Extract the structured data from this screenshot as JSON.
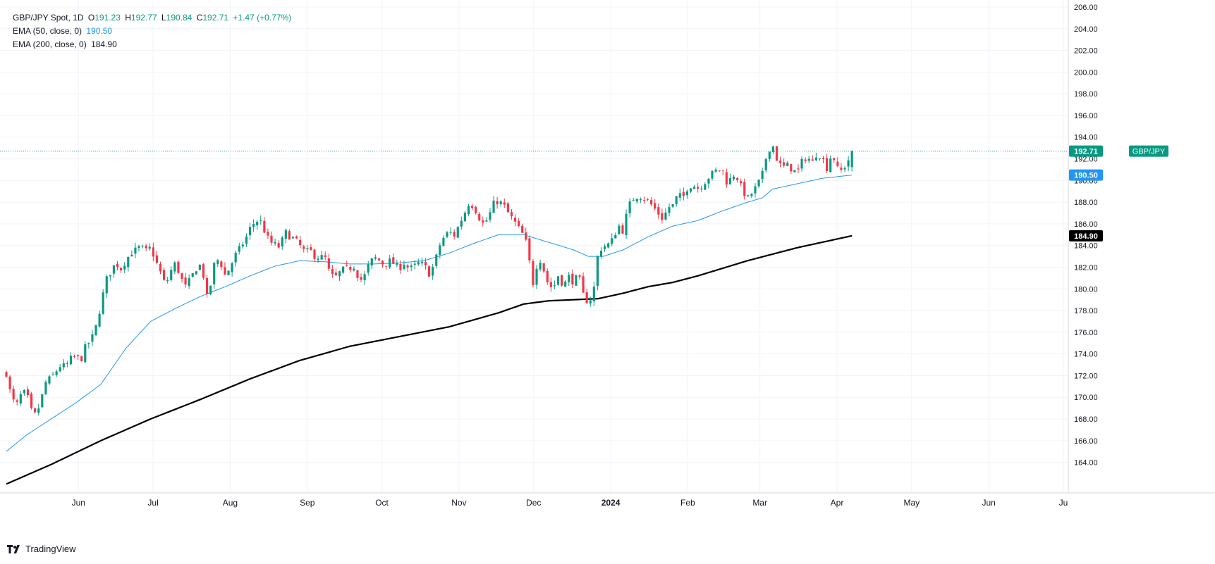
{
  "legend": {
    "symbol": "GBP/JPY Spot, 1D",
    "open_label": "O",
    "open": "191.23",
    "high_label": "H",
    "high": "192.77",
    "low_label": "L",
    "low": "190.84",
    "close_label": "C",
    "close": "192.71",
    "change": "+1.47 (+0.77%)",
    "ema50_label": "EMA (50, close, 0)",
    "ema50_value": "190.50",
    "ema200_label": "EMA (200, close, 0)",
    "ema200_value": "184.90"
  },
  "brand": {
    "name": "TradingView",
    "icon": "tradingview-logo-icon"
  },
  "colors": {
    "up": "#089981",
    "down": "#f23645",
    "ema50": "#2196f3",
    "ema200": "#000000",
    "grid": "#f0f3fa",
    "axis_text": "#131722"
  },
  "chart_data": {
    "type": "candlestick",
    "title": "GBP/JPY Spot, 1D",
    "xlabel": "",
    "ylabel": "",
    "ylim": [
      163.0,
      206.0
    ],
    "grid": true,
    "price_tag": {
      "label": "GBP/JPY",
      "value": "192.71",
      "price": 192.71
    },
    "ema50_tag": {
      "value": "190.50",
      "price": 190.5
    },
    "ema200_tag": {
      "value": "184.90",
      "price": 184.9
    },
    "y_ticks": [
      "164.00",
      "166.00",
      "168.00",
      "170.00",
      "172.00",
      "174.00",
      "176.00",
      "178.00",
      "180.00",
      "182.00",
      "184.00",
      "186.00",
      "188.00",
      "190.00",
      "192.00",
      "194.00",
      "196.00",
      "198.00",
      "200.00",
      "202.00",
      "204.00",
      "206.00"
    ],
    "x_ticks": [
      {
        "label": "Jun",
        "day": 21
      },
      {
        "label": "Jul",
        "day": 51
      },
      {
        "label": "Aug",
        "day": 82
      },
      {
        "label": "Sep",
        "day": 113
      },
      {
        "label": "Oct",
        "day": 143
      },
      {
        "label": "Nov",
        "day": 174
      },
      {
        "label": "Dec",
        "day": 204
      },
      {
        "label": "2024",
        "day": 235,
        "bold": true
      },
      {
        "label": "Feb",
        "day": 266
      },
      {
        "label": "Mar",
        "day": 295
      },
      {
        "label": "Apr",
        "day": 326
      },
      {
        "label": "May",
        "day": 356
      },
      {
        "label": "Jun",
        "day": 387
      },
      {
        "label": "Ju",
        "day": 417
      }
    ],
    "x_range_days": [
      -8,
      419
    ],
    "last_day": 356,
    "close_anchors": [
      [
        -8,
        172.2
      ],
      [
        -6,
        170.0
      ],
      [
        -4,
        169.2
      ],
      [
        -2,
        170.3
      ],
      [
        0,
        170.5
      ],
      [
        2,
        168.8
      ],
      [
        4,
        168.3
      ],
      [
        6,
        169.8
      ],
      [
        8,
        171.5
      ],
      [
        10,
        171.8
      ],
      [
        12,
        172.4
      ],
      [
        14,
        173.0
      ],
      [
        16,
        172.8
      ],
      [
        18,
        173.6
      ],
      [
        20,
        173.8
      ],
      [
        22,
        173.4
      ],
      [
        24,
        174.8
      ],
      [
        26,
        175.2
      ],
      [
        28,
        176.5
      ],
      [
        30,
        178.5
      ],
      [
        32,
        180.8
      ],
      [
        34,
        181.6
      ],
      [
        36,
        182.4
      ],
      [
        38,
        181.8
      ],
      [
        40,
        182.6
      ],
      [
        42,
        183.3
      ],
      [
        44,
        183.6
      ],
      [
        46,
        183.9
      ],
      [
        48,
        183.5
      ],
      [
        50,
        183.8
      ],
      [
        52,
        182.6
      ],
      [
        54,
        181.5
      ],
      [
        56,
        180.3
      ],
      [
        58,
        181.6
      ],
      [
        60,
        182.4
      ],
      [
        62,
        181.1
      ],
      [
        64,
        180.2
      ],
      [
        66,
        180.9
      ],
      [
        68,
        181.8
      ],
      [
        70,
        182.2
      ],
      [
        72,
        180.6
      ],
      [
        73,
        178.6
      ],
      [
        74,
        180.2
      ],
      [
        76,
        182.8
      ],
      [
        78,
        182.5
      ],
      [
        80,
        181.2
      ],
      [
        82,
        182.0
      ],
      [
        84,
        183.1
      ],
      [
        86,
        183.8
      ],
      [
        88,
        184.5
      ],
      [
        90,
        185.6
      ],
      [
        92,
        186.2
      ],
      [
        94,
        186.4
      ],
      [
        96,
        185.2
      ],
      [
        98,
        184.3
      ],
      [
        100,
        184.1
      ],
      [
        102,
        183.8
      ],
      [
        104,
        185.3
      ],
      [
        106,
        184.8
      ],
      [
        108,
        184.6
      ],
      [
        110,
        184.0
      ],
      [
        112,
        183.4
      ],
      [
        114,
        183.6
      ],
      [
        116,
        183.0
      ],
      [
        118,
        182.9
      ],
      [
        120,
        183.0
      ],
      [
        122,
        181.4
      ],
      [
        124,
        181.0
      ],
      [
        126,
        181.5
      ],
      [
        128,
        181.9
      ],
      [
        130,
        181.9
      ],
      [
        132,
        182.1
      ],
      [
        134,
        180.7
      ],
      [
        136,
        181.2
      ],
      [
        138,
        182.4
      ],
      [
        140,
        182.9
      ],
      [
        142,
        182.6
      ],
      [
        144,
        182.2
      ],
      [
        146,
        182.6
      ],
      [
        148,
        182.3
      ],
      [
        150,
        181.9
      ],
      [
        152,
        182.4
      ],
      [
        154,
        181.8
      ],
      [
        156,
        182.1
      ],
      [
        158,
        182.4
      ],
      [
        160,
        182.2
      ],
      [
        162,
        181.4
      ],
      [
        164,
        182.2
      ],
      [
        166,
        183.9
      ],
      [
        168,
        184.8
      ],
      [
        170,
        185.3
      ],
      [
        172,
        184.9
      ],
      [
        174,
        185.9
      ],
      [
        176,
        186.9
      ],
      [
        178,
        187.9
      ],
      [
        180,
        187.6
      ],
      [
        182,
        186.6
      ],
      [
        184,
        185.9
      ],
      [
        186,
        186.7
      ],
      [
        188,
        187.9
      ],
      [
        190,
        188.1
      ],
      [
        192,
        187.7
      ],
      [
        194,
        186.9
      ],
      [
        196,
        186.3
      ],
      [
        198,
        185.6
      ],
      [
        200,
        184.9
      ],
      [
        202,
        183.6
      ],
      [
        203,
        180.3
      ],
      [
        204,
        180.6
      ],
      [
        206,
        183.1
      ],
      [
        208,
        181.8
      ],
      [
        210,
        180.3
      ],
      [
        212,
        180.1
      ],
      [
        214,
        181.3
      ],
      [
        216,
        180.2
      ],
      [
        218,
        181.2
      ],
      [
        220,
        180.6
      ],
      [
        222,
        181.3
      ],
      [
        224,
        179.4
      ],
      [
        226,
        178.7
      ],
      [
        228,
        179.6
      ],
      [
        230,
        183.5
      ],
      [
        232,
        183.9
      ],
      [
        234,
        184.1
      ],
      [
        236,
        184.6
      ],
      [
        238,
        185.9
      ],
      [
        240,
        185.3
      ],
      [
        242,
        187.6
      ],
      [
        244,
        188.3
      ],
      [
        246,
        188.6
      ],
      [
        248,
        188.4
      ],
      [
        250,
        188.1
      ],
      [
        252,
        187.6
      ],
      [
        254,
        187.0
      ],
      [
        256,
        186.4
      ],
      [
        258,
        187.5
      ],
      [
        260,
        187.7
      ],
      [
        262,
        188.7
      ],
      [
        264,
        188.4
      ],
      [
        266,
        189.4
      ],
      [
        268,
        189.6
      ],
      [
        270,
        189.3
      ],
      [
        272,
        189.6
      ],
      [
        274,
        190.2
      ],
      [
        276,
        190.7
      ],
      [
        278,
        191.0
      ],
      [
        280,
        190.9
      ],
      [
        282,
        189.6
      ],
      [
        284,
        190.6
      ],
      [
        286,
        190.2
      ],
      [
        288,
        189.1
      ],
      [
        290,
        188.3
      ],
      [
        292,
        188.9
      ],
      [
        294,
        189.6
      ],
      [
        296,
        190.6
      ],
      [
        298,
        192.6
      ],
      [
        300,
        193.4
      ],
      [
        302,
        191.8
      ],
      [
        304,
        191.2
      ],
      [
        306,
        191.4
      ],
      [
        308,
        191.0
      ],
      [
        310,
        190.7
      ],
      [
        312,
        191.8
      ],
      [
        314,
        192.2
      ],
      [
        316,
        191.6
      ],
      [
        318,
        192.6
      ],
      [
        320,
        192.1
      ],
      [
        322,
        191.1
      ],
      [
        324,
        192.6
      ],
      [
        326,
        191.1
      ],
      [
        328,
        190.9
      ],
      [
        330,
        191.6
      ],
      [
        332,
        192.71
      ]
    ],
    "ema50_anchors": [
      [
        -8,
        165.0
      ],
      [
        0,
        166.5
      ],
      [
        10,
        168.0
      ],
      [
        20,
        169.5
      ],
      [
        30,
        171.2
      ],
      [
        40,
        174.5
      ],
      [
        50,
        177.0
      ],
      [
        60,
        178.2
      ],
      [
        70,
        179.3
      ],
      [
        80,
        180.2
      ],
      [
        90,
        181.2
      ],
      [
        100,
        182.1
      ],
      [
        110,
        182.6
      ],
      [
        120,
        182.5
      ],
      [
        130,
        182.3
      ],
      [
        140,
        182.3
      ],
      [
        150,
        182.4
      ],
      [
        160,
        182.6
      ],
      [
        170,
        183.3
      ],
      [
        180,
        184.2
      ],
      [
        190,
        185.0
      ],
      [
        200,
        185.0
      ],
      [
        210,
        184.3
      ],
      [
        220,
        183.6
      ],
      [
        226,
        183.0
      ],
      [
        232,
        183.0
      ],
      [
        240,
        183.6
      ],
      [
        250,
        184.8
      ],
      [
        260,
        185.8
      ],
      [
        270,
        186.3
      ],
      [
        280,
        187.2
      ],
      [
        290,
        188.0
      ],
      [
        296,
        188.4
      ],
      [
        300,
        189.2
      ],
      [
        310,
        189.7
      ],
      [
        320,
        190.2
      ],
      [
        332,
        190.5
      ]
    ],
    "ema200_anchors": [
      [
        -8,
        162.0
      ],
      [
        10,
        163.8
      ],
      [
        30,
        166.0
      ],
      [
        50,
        168.0
      ],
      [
        70,
        169.8
      ],
      [
        90,
        171.7
      ],
      [
        110,
        173.4
      ],
      [
        130,
        174.7
      ],
      [
        150,
        175.6
      ],
      [
        170,
        176.5
      ],
      [
        190,
        177.8
      ],
      [
        200,
        178.6
      ],
      [
        210,
        178.9
      ],
      [
        220,
        179.0
      ],
      [
        230,
        179.1
      ],
      [
        240,
        179.6
      ],
      [
        250,
        180.2
      ],
      [
        260,
        180.6
      ],
      [
        270,
        181.2
      ],
      [
        280,
        181.9
      ],
      [
        290,
        182.6
      ],
      [
        300,
        183.2
      ],
      [
        310,
        183.8
      ],
      [
        320,
        184.3
      ],
      [
        332,
        184.9
      ]
    ]
  }
}
